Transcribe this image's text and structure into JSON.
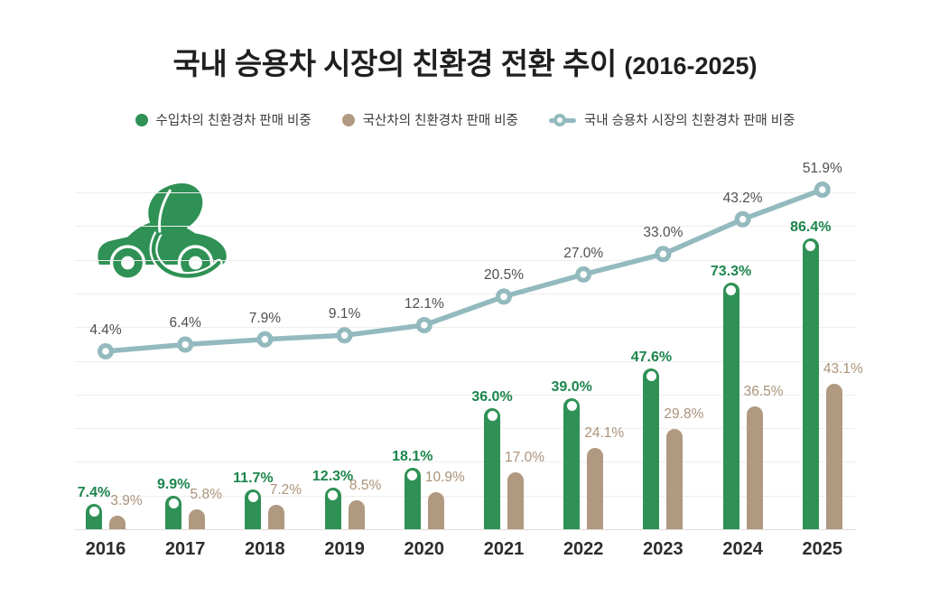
{
  "title": {
    "main": "국내 승용차 시장의 친환경 전환 추이",
    "period": "(2016-2025)"
  },
  "legend": [
    {
      "label": "수입차의 친환경차 판매 비중",
      "type": "dot",
      "color": "#2f9155"
    },
    {
      "label": "국산차의 친환경차 판매 비중",
      "type": "dot",
      "color": "#b09980"
    },
    {
      "label": "국내 승용차 시장의 친환경차 판매 비중",
      "type": "line-marker",
      "color": "#93babe"
    }
  ],
  "icon": "eco-car-with-leaf",
  "colors": {
    "imported_bar": "#2f9155",
    "imported_label": "#1c854c",
    "domestic_bar": "#b09980",
    "domestic_label": "#ab9379",
    "market_line": "#93babe",
    "line_label": "#4f4f4f",
    "grid": "#f0eded",
    "baseline": "#e0dddd",
    "background": "#ffffff"
  },
  "chart_data": {
    "type": "bar",
    "subtype": "grouped-bars-with-line",
    "title": "국내 승용차 시장의 친환경 전환 추이 (2016-2025)",
    "categories": [
      "2016",
      "2017",
      "2018",
      "2019",
      "2020",
      "2021",
      "2022",
      "2023",
      "2024",
      "2025"
    ],
    "series": [
      {
        "name": "수입차의 친환경차 판매 비중",
        "type": "bar",
        "color": "#2f9155",
        "values": [
          7.4,
          9.9,
          11.7,
          12.3,
          18.1,
          36.0,
          39.0,
          47.6,
          73.3,
          86.4
        ]
      },
      {
        "name": "국산차의 친환경차 판매 비중",
        "type": "bar",
        "color": "#b09980",
        "values": [
          3.9,
          5.8,
          7.2,
          8.5,
          10.9,
          17.0,
          24.1,
          29.8,
          36.5,
          43.1
        ]
      },
      {
        "name": "국내 승용차 시장의 친환경차 판매 비중",
        "type": "line",
        "color": "#93babe",
        "values": [
          4.4,
          6.4,
          7.9,
          9.1,
          12.1,
          20.5,
          27.0,
          33.0,
          43.2,
          51.9
        ]
      }
    ],
    "value_format": "one_decimal_percent",
    "xlabel": "",
    "ylabel": "",
    "ylim": [
      0,
      100
    ],
    "grid": "horizontal-10pct",
    "legend_position": "top"
  }
}
